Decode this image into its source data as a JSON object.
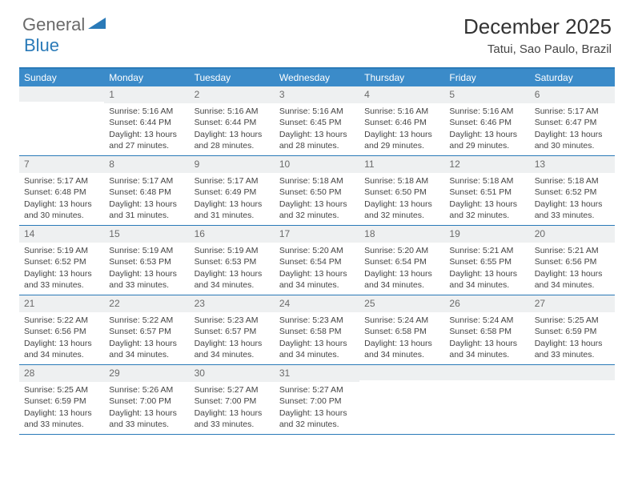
{
  "logo": {
    "text1": "General",
    "text2": "Blue"
  },
  "title": "December 2025",
  "location": "Tatui, Sao Paulo, Brazil",
  "weekdays": [
    "Sunday",
    "Monday",
    "Tuesday",
    "Wednesday",
    "Thursday",
    "Friday",
    "Saturday"
  ],
  "colors": {
    "header_bar": "#3b8bc9",
    "rule": "#2a7ab8",
    "daynum_bg": "#eef0f1",
    "text": "#444444",
    "logo_gray": "#6a6a6a",
    "logo_blue": "#2a7ab8"
  },
  "weeks": [
    [
      {
        "n": "",
        "sr": "",
        "ss": "",
        "dl": ""
      },
      {
        "n": "1",
        "sr": "Sunrise: 5:16 AM",
        "ss": "Sunset: 6:44 PM",
        "dl": "Daylight: 13 hours and 27 minutes."
      },
      {
        "n": "2",
        "sr": "Sunrise: 5:16 AM",
        "ss": "Sunset: 6:44 PM",
        "dl": "Daylight: 13 hours and 28 minutes."
      },
      {
        "n": "3",
        "sr": "Sunrise: 5:16 AM",
        "ss": "Sunset: 6:45 PM",
        "dl": "Daylight: 13 hours and 28 minutes."
      },
      {
        "n": "4",
        "sr": "Sunrise: 5:16 AM",
        "ss": "Sunset: 6:46 PM",
        "dl": "Daylight: 13 hours and 29 minutes."
      },
      {
        "n": "5",
        "sr": "Sunrise: 5:16 AM",
        "ss": "Sunset: 6:46 PM",
        "dl": "Daylight: 13 hours and 29 minutes."
      },
      {
        "n": "6",
        "sr": "Sunrise: 5:17 AM",
        "ss": "Sunset: 6:47 PM",
        "dl": "Daylight: 13 hours and 30 minutes."
      }
    ],
    [
      {
        "n": "7",
        "sr": "Sunrise: 5:17 AM",
        "ss": "Sunset: 6:48 PM",
        "dl": "Daylight: 13 hours and 30 minutes."
      },
      {
        "n": "8",
        "sr": "Sunrise: 5:17 AM",
        "ss": "Sunset: 6:48 PM",
        "dl": "Daylight: 13 hours and 31 minutes."
      },
      {
        "n": "9",
        "sr": "Sunrise: 5:17 AM",
        "ss": "Sunset: 6:49 PM",
        "dl": "Daylight: 13 hours and 31 minutes."
      },
      {
        "n": "10",
        "sr": "Sunrise: 5:18 AM",
        "ss": "Sunset: 6:50 PM",
        "dl": "Daylight: 13 hours and 32 minutes."
      },
      {
        "n": "11",
        "sr": "Sunrise: 5:18 AM",
        "ss": "Sunset: 6:50 PM",
        "dl": "Daylight: 13 hours and 32 minutes."
      },
      {
        "n": "12",
        "sr": "Sunrise: 5:18 AM",
        "ss": "Sunset: 6:51 PM",
        "dl": "Daylight: 13 hours and 32 minutes."
      },
      {
        "n": "13",
        "sr": "Sunrise: 5:18 AM",
        "ss": "Sunset: 6:52 PM",
        "dl": "Daylight: 13 hours and 33 minutes."
      }
    ],
    [
      {
        "n": "14",
        "sr": "Sunrise: 5:19 AM",
        "ss": "Sunset: 6:52 PM",
        "dl": "Daylight: 13 hours and 33 minutes."
      },
      {
        "n": "15",
        "sr": "Sunrise: 5:19 AM",
        "ss": "Sunset: 6:53 PM",
        "dl": "Daylight: 13 hours and 33 minutes."
      },
      {
        "n": "16",
        "sr": "Sunrise: 5:19 AM",
        "ss": "Sunset: 6:53 PM",
        "dl": "Daylight: 13 hours and 34 minutes."
      },
      {
        "n": "17",
        "sr": "Sunrise: 5:20 AM",
        "ss": "Sunset: 6:54 PM",
        "dl": "Daylight: 13 hours and 34 minutes."
      },
      {
        "n": "18",
        "sr": "Sunrise: 5:20 AM",
        "ss": "Sunset: 6:54 PM",
        "dl": "Daylight: 13 hours and 34 minutes."
      },
      {
        "n": "19",
        "sr": "Sunrise: 5:21 AM",
        "ss": "Sunset: 6:55 PM",
        "dl": "Daylight: 13 hours and 34 minutes."
      },
      {
        "n": "20",
        "sr": "Sunrise: 5:21 AM",
        "ss": "Sunset: 6:56 PM",
        "dl": "Daylight: 13 hours and 34 minutes."
      }
    ],
    [
      {
        "n": "21",
        "sr": "Sunrise: 5:22 AM",
        "ss": "Sunset: 6:56 PM",
        "dl": "Daylight: 13 hours and 34 minutes."
      },
      {
        "n": "22",
        "sr": "Sunrise: 5:22 AM",
        "ss": "Sunset: 6:57 PM",
        "dl": "Daylight: 13 hours and 34 minutes."
      },
      {
        "n": "23",
        "sr": "Sunrise: 5:23 AM",
        "ss": "Sunset: 6:57 PM",
        "dl": "Daylight: 13 hours and 34 minutes."
      },
      {
        "n": "24",
        "sr": "Sunrise: 5:23 AM",
        "ss": "Sunset: 6:58 PM",
        "dl": "Daylight: 13 hours and 34 minutes."
      },
      {
        "n": "25",
        "sr": "Sunrise: 5:24 AM",
        "ss": "Sunset: 6:58 PM",
        "dl": "Daylight: 13 hours and 34 minutes."
      },
      {
        "n": "26",
        "sr": "Sunrise: 5:24 AM",
        "ss": "Sunset: 6:58 PM",
        "dl": "Daylight: 13 hours and 34 minutes."
      },
      {
        "n": "27",
        "sr": "Sunrise: 5:25 AM",
        "ss": "Sunset: 6:59 PM",
        "dl": "Daylight: 13 hours and 33 minutes."
      }
    ],
    [
      {
        "n": "28",
        "sr": "Sunrise: 5:25 AM",
        "ss": "Sunset: 6:59 PM",
        "dl": "Daylight: 13 hours and 33 minutes."
      },
      {
        "n": "29",
        "sr": "Sunrise: 5:26 AM",
        "ss": "Sunset: 7:00 PM",
        "dl": "Daylight: 13 hours and 33 minutes."
      },
      {
        "n": "30",
        "sr": "Sunrise: 5:27 AM",
        "ss": "Sunset: 7:00 PM",
        "dl": "Daylight: 13 hours and 33 minutes."
      },
      {
        "n": "31",
        "sr": "Sunrise: 5:27 AM",
        "ss": "Sunset: 7:00 PM",
        "dl": "Daylight: 13 hours and 32 minutes."
      },
      {
        "n": "",
        "sr": "",
        "ss": "",
        "dl": ""
      },
      {
        "n": "",
        "sr": "",
        "ss": "",
        "dl": ""
      },
      {
        "n": "",
        "sr": "",
        "ss": "",
        "dl": ""
      }
    ]
  ]
}
